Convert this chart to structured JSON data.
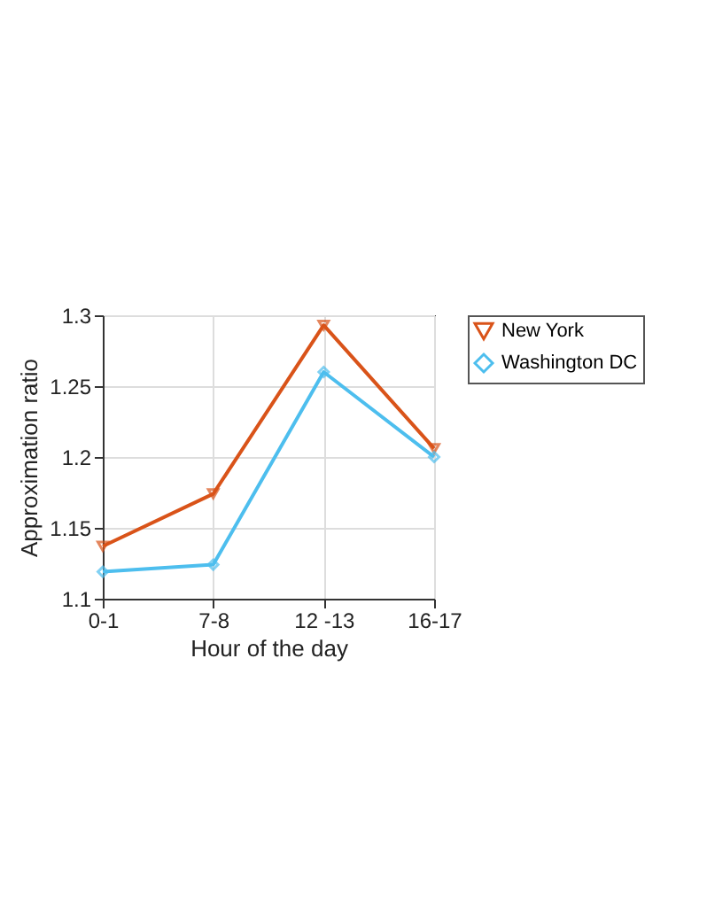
{
  "chart_data": {
    "type": "line",
    "xlabel": "Hour of the day",
    "ylabel": "Approximation ratio",
    "categories": [
      "0-1",
      "7-8",
      "12 -13",
      "16-17"
    ],
    "series": [
      {
        "name": "New York",
        "color": "#d95319",
        "marker": "triangle",
        "values": [
          1.137,
          1.174,
          1.293,
          1.206
        ]
      },
      {
        "name": "Washington DC",
        "color": "#4dbeee",
        "marker": "diamond",
        "values": [
          1.119,
          1.124,
          1.26,
          1.2
        ]
      }
    ],
    "ylim": [
      1.1,
      1.3
    ],
    "yticks": [
      1.1,
      1.15,
      1.2,
      1.25,
      1.3
    ],
    "grid": true,
    "legend": "top right",
    "line_style": "solid"
  }
}
